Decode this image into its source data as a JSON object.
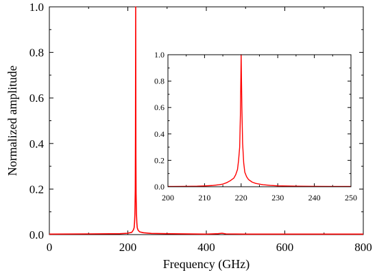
{
  "chart_data": [
    {
      "type": "line",
      "title": "",
      "xlabel": "Frequency (GHz)",
      "ylabel": "Normalized amplitude",
      "xlim": [
        0,
        800
      ],
      "ylim": [
        0,
        1.0
      ],
      "xticks": [
        "0",
        "200",
        "400",
        "600",
        "800"
      ],
      "yticks": [
        "0.0",
        "0.2",
        "0.4",
        "0.6",
        "0.8",
        "1.0"
      ],
      "grid": false,
      "line_color": "#ff0000",
      "series": [
        {
          "x": [
            0,
            100,
            180,
            200,
            210,
            214,
            216,
            217,
            218,
            219,
            219.5,
            220,
            220.5,
            221,
            222,
            223,
            224,
            226,
            230,
            240,
            260,
            300,
            400,
            430,
            440,
            450,
            500,
            600,
            700,
            800
          ],
          "y": [
            0.002,
            0.003,
            0.004,
            0.006,
            0.01,
            0.02,
            0.03,
            0.05,
            0.09,
            0.2,
            0.45,
            1.0,
            0.35,
            0.18,
            0.09,
            0.05,
            0.03,
            0.02,
            0.012,
            0.008,
            0.005,
            0.004,
            0.002,
            0.004,
            0.006,
            0.003,
            0.002,
            0.002,
            0.002,
            0.002
          ]
        }
      ]
    },
    {
      "type": "line",
      "title": "",
      "xlabel": "",
      "ylabel": "",
      "xlim": [
        200,
        250
      ],
      "ylim": [
        0,
        1.0
      ],
      "xticks": [
        "200",
        "210",
        "220",
        "230",
        "240",
        "250"
      ],
      "yticks": [
        "0.0",
        "0.2",
        "0.4",
        "0.6",
        "0.8",
        "1.0"
      ],
      "grid": false,
      "line_color": "#ff0000",
      "series": [
        {
          "x": [
            200,
            205,
            208,
            210,
            212,
            214,
            215,
            216,
            217,
            218,
            218.5,
            219,
            219.3,
            219.6,
            219.8,
            220,
            220.2,
            220.4,
            220.7,
            221,
            221.5,
            222,
            223,
            224,
            226,
            228,
            230,
            235,
            240,
            245,
            250
          ],
          "y": [
            0.002,
            0.003,
            0.004,
            0.006,
            0.009,
            0.015,
            0.02,
            0.03,
            0.045,
            0.065,
            0.09,
            0.13,
            0.2,
            0.3,
            0.55,
            1.0,
            0.6,
            0.33,
            0.18,
            0.11,
            0.075,
            0.055,
            0.035,
            0.025,
            0.015,
            0.01,
            0.007,
            0.004,
            0.003,
            0.002,
            0.002
          ]
        }
      ]
    }
  ]
}
